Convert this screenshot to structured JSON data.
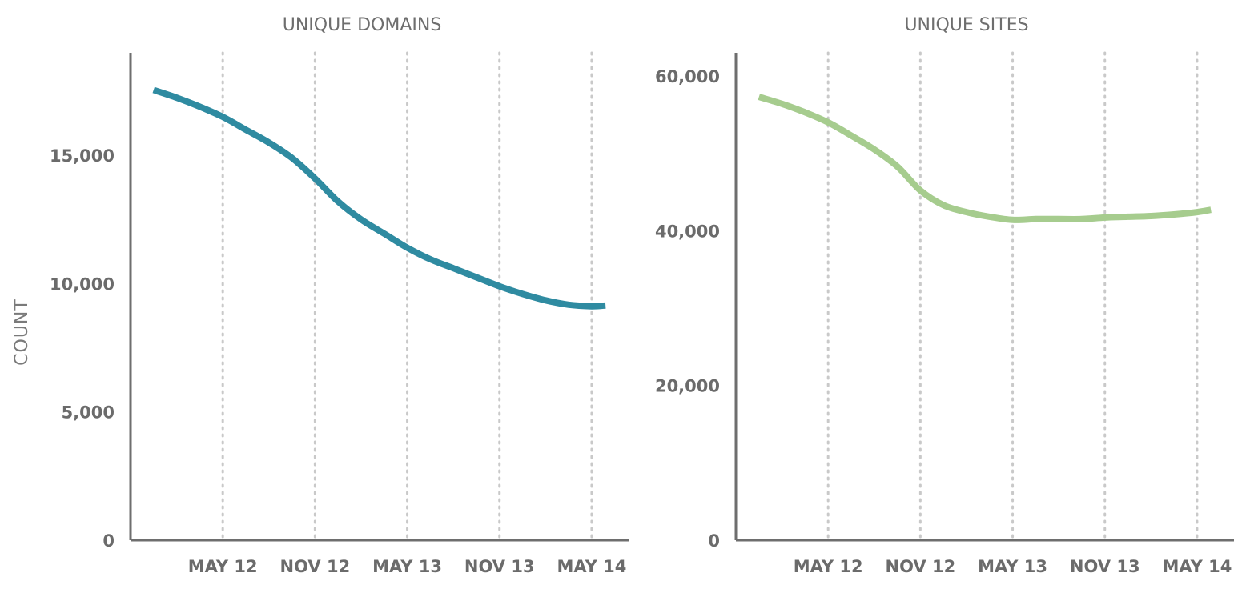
{
  "chart_data": [
    {
      "type": "line",
      "title": "UNIQUE DOMAINS",
      "ylabel": "COUNT",
      "xlabel": "",
      "ylim": [
        0,
        19000
      ],
      "yticks": [
        0,
        5000,
        10000,
        15000
      ],
      "ytick_labels": [
        "0",
        "5,000",
        "10,000",
        "15,000"
      ],
      "x_tick_labels": [
        "MAY 12",
        "NOV 12",
        "MAY 13",
        "NOV 13",
        "MAY 14"
      ],
      "xlim": [
        0,
        10.8
      ],
      "x_tick_positions": [
        2,
        4,
        6,
        8,
        10
      ],
      "grid": "vertical dotted at x ticks",
      "series": [
        {
          "color": "#2f8ba1",
          "x": [
            0.5,
            1.0,
            1.5,
            2.0,
            2.5,
            3.0,
            3.5,
            4.0,
            4.5,
            5.0,
            5.5,
            6.0,
            6.5,
            7.0,
            7.5,
            8.0,
            8.5,
            9.0,
            9.5,
            10.0,
            10.3
          ],
          "values": [
            17550,
            17250,
            16900,
            16500,
            16000,
            15500,
            14900,
            14100,
            13200,
            12500,
            11950,
            11400,
            10950,
            10600,
            10250,
            9900,
            9600,
            9350,
            9180,
            9120,
            9150
          ]
        }
      ]
    },
    {
      "type": "line",
      "title": "UNIQUE SITES",
      "ylabel": "",
      "xlabel": "",
      "ylim": [
        0,
        63000
      ],
      "yticks": [
        0,
        20000,
        40000,
        60000
      ],
      "ytick_labels": [
        "0",
        "20,000",
        "40,000",
        "60,000"
      ],
      "x_tick_labels": [
        "MAY 12",
        "NOV 12",
        "MAY 13",
        "NOV 13",
        "MAY 14"
      ],
      "xlim": [
        0,
        10.8
      ],
      "x_tick_positions": [
        2,
        4,
        6,
        8,
        10
      ],
      "grid": "vertical dotted at x ticks",
      "series": [
        {
          "color": "#a6cc8e",
          "x": [
            0.5,
            1.0,
            1.5,
            2.0,
            2.5,
            3.0,
            3.5,
            4.0,
            4.5,
            5.0,
            5.5,
            6.0,
            6.5,
            7.0,
            7.5,
            8.0,
            8.5,
            9.0,
            9.5,
            10.0,
            10.3
          ],
          "values": [
            57300,
            56400,
            55300,
            54000,
            52300,
            50500,
            48300,
            45200,
            43300,
            42400,
            41800,
            41400,
            41500,
            41500,
            41500,
            41700,
            41800,
            41900,
            42100,
            42400,
            42700
          ]
        }
      ]
    }
  ]
}
